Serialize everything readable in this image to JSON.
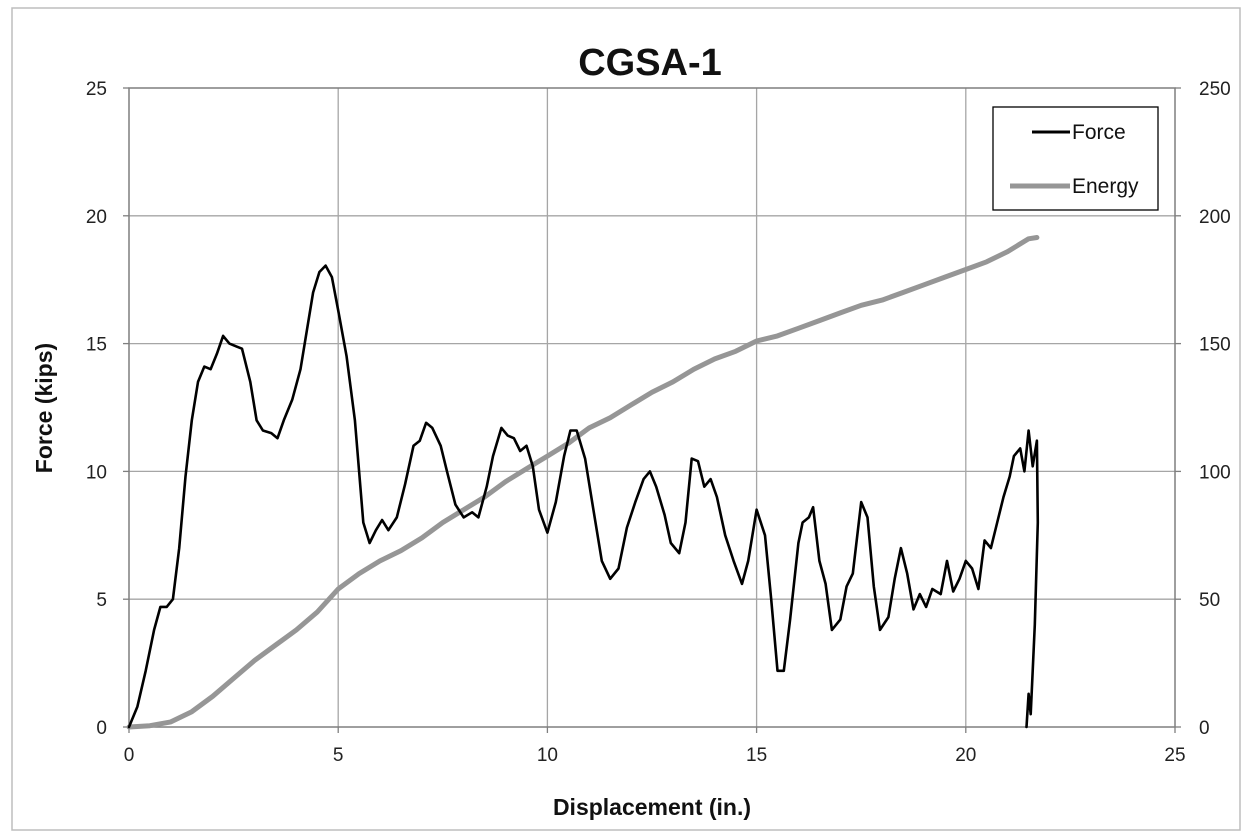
{
  "chart_data": {
    "type": "line",
    "title": "CGSA-1",
    "xlabel": "Displacement (in.)",
    "ylabel": "Force (kips)",
    "y2label": "",
    "xlim": [
      0,
      25
    ],
    "ylim": [
      0,
      25
    ],
    "y2lim": [
      0,
      250
    ],
    "x_ticks": [
      "0",
      "5",
      "10",
      "15",
      "20",
      "25"
    ],
    "y_ticks": [
      "0",
      "5",
      "10",
      "15",
      "20",
      "25"
    ],
    "y2_ticks": [
      "0",
      "50",
      "100",
      "150",
      "200",
      "250"
    ],
    "grid": true,
    "legend_position": "top-right",
    "series": [
      {
        "name": "Force",
        "axis": "left",
        "color": "#000000",
        "points": [
          [
            0,
            0
          ],
          [
            0.2,
            0.8
          ],
          [
            0.4,
            2.2
          ],
          [
            0.6,
            3.8
          ],
          [
            0.75,
            4.7
          ],
          [
            0.9,
            4.7
          ],
          [
            1.05,
            5.0
          ],
          [
            1.2,
            7.0
          ],
          [
            1.35,
            9.8
          ],
          [
            1.5,
            12.0
          ],
          [
            1.65,
            13.5
          ],
          [
            1.8,
            14.1
          ],
          [
            1.95,
            14.0
          ],
          [
            2.1,
            14.6
          ],
          [
            2.25,
            15.3
          ],
          [
            2.4,
            15.0
          ],
          [
            2.55,
            14.9
          ],
          [
            2.7,
            14.8
          ],
          [
            2.9,
            13.5
          ],
          [
            3.05,
            12.0
          ],
          [
            3.2,
            11.6
          ],
          [
            3.4,
            11.5
          ],
          [
            3.55,
            11.3
          ],
          [
            3.7,
            12.0
          ],
          [
            3.9,
            12.8
          ],
          [
            4.1,
            14.0
          ],
          [
            4.25,
            15.5
          ],
          [
            4.4,
            17.0
          ],
          [
            4.55,
            17.8
          ],
          [
            4.7,
            18.05
          ],
          [
            4.85,
            17.6
          ],
          [
            5.0,
            16.3
          ],
          [
            5.2,
            14.5
          ],
          [
            5.4,
            12.0
          ],
          [
            5.6,
            8.0
          ],
          [
            5.75,
            7.2
          ],
          [
            5.9,
            7.7
          ],
          [
            6.05,
            8.1
          ],
          [
            6.2,
            7.7
          ],
          [
            6.4,
            8.2
          ],
          [
            6.6,
            9.5
          ],
          [
            6.8,
            11.0
          ],
          [
            6.95,
            11.2
          ],
          [
            7.1,
            11.9
          ],
          [
            7.25,
            11.7
          ],
          [
            7.45,
            11.0
          ],
          [
            7.6,
            10.0
          ],
          [
            7.8,
            8.7
          ],
          [
            8.0,
            8.2
          ],
          [
            8.2,
            8.4
          ],
          [
            8.35,
            8.2
          ],
          [
            8.55,
            9.4
          ],
          [
            8.7,
            10.6
          ],
          [
            8.9,
            11.7
          ],
          [
            9.05,
            11.4
          ],
          [
            9.2,
            11.3
          ],
          [
            9.35,
            10.8
          ],
          [
            9.5,
            11.0
          ],
          [
            9.65,
            10.2
          ],
          [
            9.8,
            8.5
          ],
          [
            10.0,
            7.6
          ],
          [
            10.2,
            8.8
          ],
          [
            10.4,
            10.6
          ],
          [
            10.55,
            11.6
          ],
          [
            10.7,
            11.6
          ],
          [
            10.9,
            10.5
          ],
          [
            11.1,
            8.5
          ],
          [
            11.3,
            6.5
          ],
          [
            11.5,
            5.8
          ],
          [
            11.7,
            6.2
          ],
          [
            11.9,
            7.8
          ],
          [
            12.1,
            8.8
          ],
          [
            12.3,
            9.7
          ],
          [
            12.45,
            10.0
          ],
          [
            12.6,
            9.4
          ],
          [
            12.8,
            8.3
          ],
          [
            12.95,
            7.2
          ],
          [
            13.15,
            6.8
          ],
          [
            13.3,
            8.0
          ],
          [
            13.45,
            10.5
          ],
          [
            13.6,
            10.4
          ],
          [
            13.75,
            9.4
          ],
          [
            13.9,
            9.7
          ],
          [
            14.05,
            9.0
          ],
          [
            14.25,
            7.5
          ],
          [
            14.45,
            6.5
          ],
          [
            14.65,
            5.6
          ],
          [
            14.8,
            6.5
          ],
          [
            15.0,
            8.5
          ],
          [
            15.2,
            7.5
          ],
          [
            15.35,
            5.0
          ],
          [
            15.5,
            2.2
          ],
          [
            15.65,
            2.2
          ],
          [
            15.8,
            4.2
          ],
          [
            16.0,
            7.2
          ],
          [
            16.1,
            8.0
          ],
          [
            16.25,
            8.2
          ],
          [
            16.35,
            8.6
          ],
          [
            16.5,
            6.5
          ],
          [
            16.65,
            5.6
          ],
          [
            16.8,
            3.8
          ],
          [
            17.0,
            4.2
          ],
          [
            17.15,
            5.5
          ],
          [
            17.3,
            6.0
          ],
          [
            17.5,
            8.8
          ],
          [
            17.65,
            8.2
          ],
          [
            17.8,
            5.5
          ],
          [
            17.95,
            3.8
          ],
          [
            18.15,
            4.3
          ],
          [
            18.3,
            5.8
          ],
          [
            18.45,
            7.0
          ],
          [
            18.6,
            6.0
          ],
          [
            18.75,
            4.6
          ],
          [
            18.9,
            5.2
          ],
          [
            19.05,
            4.7
          ],
          [
            19.2,
            5.4
          ],
          [
            19.4,
            5.2
          ],
          [
            19.55,
            6.5
          ],
          [
            19.7,
            5.3
          ],
          [
            19.85,
            5.8
          ],
          [
            20.0,
            6.5
          ],
          [
            20.15,
            6.2
          ],
          [
            20.3,
            5.4
          ],
          [
            20.45,
            7.3
          ],
          [
            20.6,
            7.0
          ],
          [
            20.75,
            8.0
          ],
          [
            20.9,
            9.0
          ],
          [
            21.05,
            9.8
          ],
          [
            21.15,
            10.6
          ],
          [
            21.3,
            10.9
          ],
          [
            21.4,
            10.0
          ],
          [
            21.5,
            11.6
          ],
          [
            21.6,
            10.2
          ],
          [
            21.7,
            11.2
          ],
          [
            21.72,
            8.0
          ],
          [
            21.65,
            4.0
          ],
          [
            21.6,
            2.2
          ],
          [
            21.55,
            0.5
          ],
          [
            21.5,
            1.3
          ],
          [
            21.45,
            0
          ]
        ]
      },
      {
        "name": "Energy",
        "axis": "right",
        "color": "#969696",
        "points": [
          [
            0,
            0
          ],
          [
            0.5,
            0.5
          ],
          [
            1.0,
            2.0
          ],
          [
            1.5,
            6.0
          ],
          [
            2.0,
            12.0
          ],
          [
            2.5,
            19.0
          ],
          [
            3.0,
            26.0
          ],
          [
            3.5,
            32.0
          ],
          [
            4.0,
            38.0
          ],
          [
            4.5,
            45.0
          ],
          [
            5.0,
            54.0
          ],
          [
            5.5,
            60.0
          ],
          [
            6.0,
            65.0
          ],
          [
            6.5,
            69.0
          ],
          [
            7.0,
            74.0
          ],
          [
            7.5,
            80.0
          ],
          [
            8.0,
            85.0
          ],
          [
            8.5,
            90.0
          ],
          [
            9.0,
            96.0
          ],
          [
            9.5,
            101.0
          ],
          [
            10.0,
            106.0
          ],
          [
            10.5,
            111.0
          ],
          [
            11.0,
            117.0
          ],
          [
            11.5,
            121.0
          ],
          [
            12.0,
            126.0
          ],
          [
            12.5,
            131.0
          ],
          [
            13.0,
            135.0
          ],
          [
            13.5,
            140.0
          ],
          [
            14.0,
            144.0
          ],
          [
            14.5,
            147.0
          ],
          [
            15.0,
            151.0
          ],
          [
            15.5,
            153.0
          ],
          [
            16.0,
            156.0
          ],
          [
            16.5,
            159.0
          ],
          [
            17.0,
            162.0
          ],
          [
            17.5,
            165.0
          ],
          [
            18.0,
            167.0
          ],
          [
            18.5,
            170.0
          ],
          [
            19.0,
            173.0
          ],
          [
            19.5,
            176.0
          ],
          [
            20.0,
            179.0
          ],
          [
            20.5,
            182.0
          ],
          [
            21.0,
            186.0
          ],
          [
            21.5,
            191.0
          ],
          [
            21.7,
            191.5
          ]
        ]
      }
    ]
  }
}
